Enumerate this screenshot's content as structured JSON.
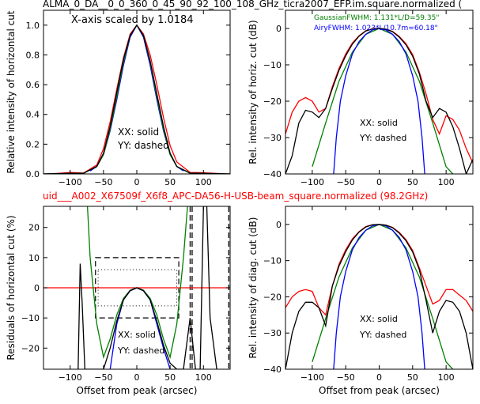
{
  "figure": {
    "top_title": "ALMA_0_DA__0_0_360_0_45_90_92_100_108_GHz_ticra2007_EFP.im.square.normalized (",
    "mid_title": "uid___A002_X67509f_X6f8_APC-DA56-H-USB-beam_square.normalized (98.2GHz)",
    "colors": {
      "black": "#000000",
      "red": "#ff0000",
      "blue": "#0000ff",
      "green": "#008000",
      "mid_title": "#ff0000"
    }
  },
  "chart_data": [
    {
      "id": "tl",
      "type": "line",
      "xlabel": "",
      "ylabel": "Relative intensity of horizontal cut",
      "xlim": [
        -140,
        140
      ],
      "ylim": [
        0,
        1.1
      ],
      "xticks": [
        -100,
        -50,
        0,
        50,
        100
      ],
      "yticks": [
        0.0,
        0.2,
        0.4,
        0.6,
        0.8,
        1.0
      ],
      "ytick_labels": [
        "0.0",
        "0.2",
        "0.4",
        "0.6",
        "0.8",
        "1.0"
      ],
      "annotations": [
        "X-axis scaled by 1.0184",
        "XX: solid",
        "YY: dashed"
      ],
      "series": [
        {
          "color": "red",
          "x": [
            -140,
            -120,
            -100,
            -80,
            -60,
            -50,
            -40,
            -30,
            -20,
            -10,
            0,
            10,
            20,
            30,
            40,
            50,
            60,
            80,
            100,
            120,
            140
          ],
          "y": [
            0,
            0.003,
            0.01,
            0.006,
            0.06,
            0.17,
            0.35,
            0.57,
            0.78,
            0.94,
            1.0,
            0.94,
            0.8,
            0.6,
            0.38,
            0.19,
            0.08,
            0.01,
            0.008,
            0.003,
            0
          ]
        },
        {
          "color": "blue",
          "x": [
            -70,
            -60,
            -50,
            -40,
            -30,
            -20,
            -10,
            0,
            10,
            20,
            30,
            40,
            50,
            60,
            70
          ],
          "y": [
            0.02,
            0.05,
            0.13,
            0.29,
            0.5,
            0.73,
            0.92,
            1.0,
            0.92,
            0.73,
            0.5,
            0.29,
            0.13,
            0.05,
            0.02
          ]
        },
        {
          "color": "green",
          "x": [
            -140,
            -80,
            -60,
            -50,
            -40,
            -30,
            -20,
            -10,
            0,
            10,
            20,
            30,
            40,
            50,
            60,
            80,
            140
          ],
          "y": [
            0,
            0.004,
            0.05,
            0.13,
            0.3,
            0.52,
            0.75,
            0.93,
            1.0,
            0.93,
            0.75,
            0.52,
            0.3,
            0.13,
            0.05,
            0.004,
            0
          ]
        },
        {
          "color": "black",
          "x": [
            -140,
            -100,
            -80,
            -60,
            -50,
            -40,
            -30,
            -20,
            -10,
            0,
            10,
            20,
            30,
            40,
            50,
            60,
            80,
            100,
            140
          ],
          "y": [
            0,
            0.004,
            0.005,
            0.05,
            0.14,
            0.32,
            0.55,
            0.77,
            0.93,
            1.0,
            0.93,
            0.76,
            0.54,
            0.32,
            0.14,
            0.05,
            0.006,
            0.004,
            0
          ]
        }
      ]
    },
    {
      "id": "tr",
      "type": "line",
      "xlabel": "",
      "ylabel": "Rel. intensity of horiz. cut (dB)",
      "xlim": [
        -140,
        140
      ],
      "ylim": [
        -40,
        5
      ],
      "xticks": [
        -100,
        -50,
        0,
        50,
        100
      ],
      "yticks": [
        -40,
        -30,
        -20,
        -10,
        0
      ],
      "ytick_labels": [
        "−40",
        "−30",
        "−20",
        "−10",
        "0"
      ],
      "annotations": [
        "GaussianFWHM: 1.131*L/D=59.35\"",
        "AiryFWHM: 1.023*L/10.7m=60.18\"",
        "XX: solid",
        "YY: dashed"
      ],
      "series": [
        {
          "color": "red",
          "x": [
            -140,
            -130,
            -120,
            -110,
            -100,
            -90,
            -80,
            -70,
            -60,
            -50,
            -40,
            -30,
            -20,
            -10,
            0,
            10,
            20,
            30,
            40,
            50,
            60,
            70,
            80,
            90,
            100,
            110,
            120,
            130,
            140
          ],
          "y": [
            -29,
            -23,
            -20,
            -19,
            -20,
            -23,
            -22,
            -16,
            -11,
            -7,
            -4,
            -2,
            -0.6,
            -0.1,
            0,
            -0.2,
            -0.8,
            -2.2,
            -4.2,
            -7.2,
            -12,
            -18,
            -25,
            -29,
            -24,
            -25,
            -28,
            -33,
            -37
          ]
        },
        {
          "color": "green",
          "x": [
            -100,
            -80,
            -60,
            -40,
            -20,
            0,
            20,
            40,
            60,
            80,
            100,
            110
          ],
          "y": [
            -38,
            -26,
            -14.5,
            -6.5,
            -1.6,
            0,
            -1.6,
            -6.5,
            -14.5,
            -26,
            -38,
            -40
          ]
        },
        {
          "color": "blue",
          "x": [
            -68,
            -64,
            -58,
            -50,
            -40,
            -30,
            -20,
            -10,
            0,
            10,
            20,
            30,
            40,
            50,
            58,
            64,
            68
          ],
          "y": [
            -40,
            -30,
            -20,
            -13,
            -7,
            -3.6,
            -1.6,
            -0.4,
            0,
            -0.4,
            -1.6,
            -3.6,
            -7,
            -13,
            -20,
            -30,
            -40
          ]
        },
        {
          "color": "black",
          "x": [
            -140,
            -130,
            -120,
            -110,
            -100,
            -90,
            -80,
            -70,
            -60,
            -50,
            -40,
            -30,
            -20,
            -10,
            0,
            10,
            20,
            30,
            40,
            50,
            60,
            70,
            80,
            90,
            100,
            110,
            120,
            130,
            140
          ],
          "y": [
            -40,
            -35,
            -26,
            -22.5,
            -23,
            -24.5,
            -22,
            -16.5,
            -11.5,
            -7.5,
            -4.3,
            -2.1,
            -0.7,
            -0.1,
            0,
            -0.2,
            -0.9,
            -2.4,
            -4.5,
            -7.6,
            -12.5,
            -20,
            -24.5,
            -22,
            -23,
            -27,
            -33,
            -40,
            -36
          ]
        }
      ]
    },
    {
      "id": "bl",
      "type": "line",
      "xlabel": "Offset from peak (arcsec)",
      "ylabel": "Residuals of horizontal cut (%)",
      "xlim": [
        -140,
        140
      ],
      "ylim": [
        -27,
        27
      ],
      "xticks": [
        -100,
        -50,
        0,
        50,
        100
      ],
      "yticks": [
        -20,
        -10,
        0,
        10,
        20
      ],
      "ytick_labels": [
        "−20",
        "−10",
        "0",
        "10",
        "20"
      ],
      "annotations": [
        "XX: solid",
        "YY: dashed"
      ],
      "series": [
        {
          "color": "red",
          "x": [
            -140,
            140
          ],
          "y": [
            0,
            0
          ]
        },
        {
          "color": "green",
          "x": [
            -74,
            -70,
            -60,
            -50,
            -40,
            -30,
            -20,
            -10,
            0,
            10,
            20,
            30,
            40,
            50,
            60,
            70,
            76
          ],
          "y": [
            27,
            10,
            -12,
            -23,
            -17,
            -9,
            -3.5,
            -0.8,
            0,
            -0.8,
            -3.5,
            -9,
            -17,
            -23,
            -12,
            10,
            27
          ]
        },
        {
          "color": "blue",
          "x": [
            -40,
            -30,
            -20,
            -10,
            0,
            10,
            20,
            30,
            40,
            50
          ],
          "y": [
            -27,
            -12,
            -4,
            -1,
            0,
            -1,
            -4,
            -12,
            -20,
            -27
          ]
        },
        {
          "color": "black",
          "x": [
            -88,
            -85,
            -82,
            -78,
            -70,
            -60,
            -50,
            -40,
            -30,
            -20,
            -10,
            0,
            10,
            20,
            30,
            40,
            50,
            60,
            70,
            80,
            88,
            95,
            100,
            105,
            110,
            120
          ],
          "y": [
            -27,
            8,
            -5,
            -27,
            -27,
            -27,
            -27,
            -20,
            -11,
            -4,
            -1,
            0,
            -1,
            -4,
            -11,
            -19,
            -25,
            -27,
            -27,
            -10,
            -27,
            -27,
            27,
            27,
            -10,
            -27
          ]
        }
      ]
    },
    {
      "id": "br",
      "type": "line",
      "xlabel": "Offset from peak (arcsec)",
      "ylabel": "Rel. intensity of diag. cut (dB)",
      "xlim": [
        -140,
        140
      ],
      "ylim": [
        -40,
        5
      ],
      "xticks": [
        -100,
        -50,
        0,
        50,
        100
      ],
      "yticks": [
        -40,
        -30,
        -20,
        -10,
        0
      ],
      "ytick_labels": [
        "−40",
        "−30",
        "−20",
        "−10",
        "0"
      ],
      "annotations": [
        "XX: solid",
        "YY: dashed"
      ],
      "series": [
        {
          "color": "red",
          "x": [
            -140,
            -130,
            -120,
            -110,
            -100,
            -90,
            -80,
            -70,
            -60,
            -50,
            -40,
            -30,
            -20,
            -10,
            0,
            10,
            20,
            30,
            40,
            50,
            60,
            70,
            80,
            90,
            100,
            110,
            120,
            130,
            140
          ],
          "y": [
            -23,
            -20,
            -18.5,
            -18,
            -18.5,
            -23,
            -25,
            -17,
            -11,
            -7,
            -4,
            -2,
            -0.6,
            -0.1,
            0,
            -0.2,
            -0.8,
            -2.2,
            -4.2,
            -7.2,
            -12,
            -17,
            -22,
            -21,
            -18,
            -18,
            -19.5,
            -21,
            -24
          ]
        },
        {
          "color": "green",
          "x": [
            -100,
            -80,
            -60,
            -40,
            -20,
            0,
            20,
            40,
            60,
            80,
            100,
            110
          ],
          "y": [
            -38,
            -26,
            -14.5,
            -6.5,
            -1.6,
            0,
            -1.6,
            -6.5,
            -14.5,
            -26,
            -38,
            -40
          ]
        },
        {
          "color": "blue",
          "x": [
            -68,
            -64,
            -58,
            -50,
            -40,
            -30,
            -20,
            -10,
            0,
            10,
            20,
            30,
            40,
            50,
            58,
            64,
            68
          ],
          "y": [
            -40,
            -30,
            -20,
            -13,
            -7,
            -3.6,
            -1.6,
            -0.4,
            0,
            -0.4,
            -1.6,
            -3.6,
            -7,
            -13,
            -20,
            -30,
            -40
          ]
        },
        {
          "color": "black",
          "x": [
            -140,
            -130,
            -120,
            -110,
            -100,
            -90,
            -80,
            -70,
            -60,
            -50,
            -40,
            -30,
            -20,
            -10,
            0,
            10,
            20,
            30,
            40,
            50,
            60,
            70,
            80,
            90,
            100,
            110,
            120,
            130,
            140
          ],
          "y": [
            -40,
            -30,
            -24,
            -21.5,
            -21.5,
            -23,
            -28,
            -17,
            -11.5,
            -7.5,
            -4.3,
            -2.1,
            -0.7,
            -0.1,
            0,
            -0.2,
            -0.9,
            -2.4,
            -4.5,
            -7.6,
            -12.5,
            -21,
            -30,
            -24,
            -21,
            -21.5,
            -24,
            -30,
            -40
          ]
        }
      ]
    }
  ]
}
